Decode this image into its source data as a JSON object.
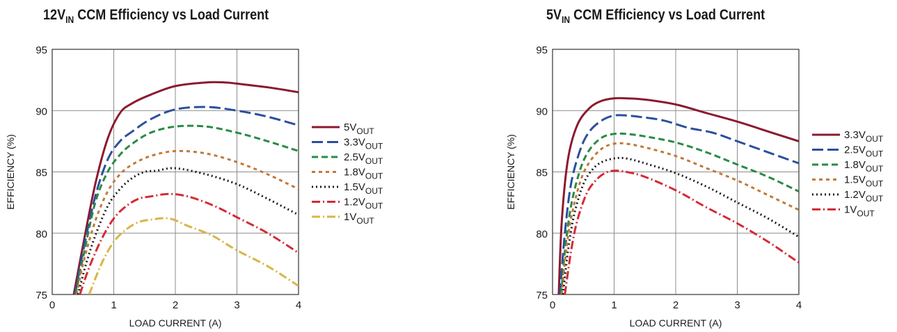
{
  "chart_data": [
    {
      "type": "line",
      "title": "12V",
      "title_sub": "IN",
      "title_rest": " CCM Efficiency vs Load Current",
      "xlabel": "LOAD CURRENT (A)",
      "ylabel": "EFFICIENCY (%)",
      "xlim": [
        0,
        4
      ],
      "ylim": [
        75,
        95
      ],
      "xticks": [
        "0",
        "1",
        "2",
        "3",
        "4"
      ],
      "yticks": [
        "75",
        "80",
        "85",
        "90",
        "95"
      ],
      "grid": true,
      "legend_position": "right",
      "series": [
        {
          "name": "5V",
          "name_sub": "OUT",
          "color": "#8b1a2e",
          "dash": "solid",
          "x": [
            0.35,
            0.5,
            0.7,
            0.9,
            1.1,
            1.3,
            1.6,
            2.0,
            2.5,
            2.8,
            3.0,
            3.5,
            4.0
          ],
          "y": [
            75,
            79,
            84,
            87.7,
            89.8,
            90.6,
            91.3,
            92.0,
            92.3,
            92.3,
            92.2,
            91.9,
            91.5
          ]
        },
        {
          "name": "3.3V",
          "name_sub": "OUT",
          "color": "#2c4f9e",
          "dash": "16,6",
          "x": [
            0.37,
            0.5,
            0.7,
            0.9,
            1.1,
            1.3,
            1.6,
            2.0,
            2.5,
            3.0,
            3.5,
            4.0
          ],
          "y": [
            75,
            78.5,
            83,
            86,
            87.5,
            88.3,
            89.3,
            90.1,
            90.3,
            90.0,
            89.5,
            88.8
          ]
        },
        {
          "name": "2.5V",
          "name_sub": "OUT",
          "color": "#2a8a45",
          "dash": "9,5",
          "x": [
            0.38,
            0.5,
            0.7,
            0.9,
            1.1,
            1.3,
            1.6,
            2.0,
            2.5,
            3.0,
            3.5,
            4.0
          ],
          "y": [
            75,
            78,
            82.5,
            85,
            86.4,
            87.3,
            88.2,
            88.7,
            88.7,
            88.2,
            87.5,
            86.7
          ]
        },
        {
          "name": "1.8V",
          "name_sub": "OUT",
          "color": "#c07a3a",
          "dash": "5,5",
          "x": [
            0.4,
            0.5,
            0.7,
            0.9,
            1.1,
            1.3,
            1.6,
            2.0,
            2.5,
            3.0,
            3.5,
            4.0
          ],
          "y": [
            75,
            77.5,
            81,
            83.4,
            84.8,
            85.6,
            86.3,
            86.7,
            86.5,
            85.8,
            84.8,
            83.6
          ]
        },
        {
          "name": "1.5V",
          "name_sub": "OUT",
          "color": "#1a1a1a",
          "dash": "2,4",
          "x": [
            0.42,
            0.55,
            0.7,
            0.9,
            1.1,
            1.3,
            1.5,
            1.7,
            2.0,
            2.5,
            3.0,
            3.5,
            4.0
          ],
          "y": [
            75,
            77.5,
            79.8,
            82.2,
            83.6,
            84.5,
            85.0,
            85.1,
            85.3,
            84.8,
            84.0,
            82.8,
            81.5
          ]
        },
        {
          "name": "1.2V",
          "name_sub": "OUT",
          "color": "#d42b35",
          "dash": "12,4,2,4",
          "x": [
            0.45,
            0.6,
            0.8,
            1.0,
            1.2,
            1.4,
            1.6,
            1.9,
            2.2,
            2.6,
            3.0,
            3.5,
            4.0
          ],
          "y": [
            75,
            77.2,
            79.5,
            81.2,
            82.2,
            82.8,
            83.0,
            83.2,
            83.0,
            82.3,
            81.3,
            80.0,
            78.4
          ]
        },
        {
          "name": "1V",
          "name_sub": "OUT",
          "color": "#d9b548",
          "dash": "12,4,2,4",
          "x": [
            0.6,
            0.8,
            1.0,
            1.2,
            1.4,
            1.6,
            1.9,
            2.2,
            2.6,
            3.0,
            3.5,
            4.0
          ],
          "y": [
            75,
            77.5,
            79.3,
            80.3,
            80.9,
            81.1,
            81.2,
            80.6,
            79.8,
            78.6,
            77.3,
            75.7
          ]
        }
      ]
    },
    {
      "type": "line",
      "title": "5V",
      "title_sub": "IN",
      "title_rest": " CCM Efficiency vs Load Current",
      "xlabel": "LOAD CURRENT (A)",
      "ylabel": "EFFICIENCY (%)",
      "xlim": [
        0,
        4
      ],
      "ylim": [
        75,
        95
      ],
      "xticks": [
        "0",
        "1",
        "2",
        "3",
        "4"
      ],
      "yticks": [
        "75",
        "80",
        "85",
        "90",
        "95"
      ],
      "grid": true,
      "legend_position": "right",
      "series": [
        {
          "name": "3.3V",
          "name_sub": "OUT",
          "color": "#8b1a2e",
          "dash": "solid",
          "x": [
            0.1,
            0.15,
            0.25,
            0.4,
            0.6,
            0.8,
            1.0,
            1.2,
            1.5,
            2.0,
            2.5,
            3.0,
            3.5,
            4.0
          ],
          "y": [
            75,
            81,
            86,
            88.8,
            90.2,
            90.8,
            91.0,
            91.0,
            90.9,
            90.5,
            89.8,
            89.1,
            88.3,
            87.5
          ]
        },
        {
          "name": "2.5V",
          "name_sub": "OUT",
          "color": "#2c4f9e",
          "dash": "16,6",
          "x": [
            0.12,
            0.2,
            0.3,
            0.45,
            0.6,
            0.8,
            1.0,
            1.2,
            1.4,
            1.8,
            2.2,
            2.6,
            3.0,
            3.5,
            4.0
          ],
          "y": [
            75,
            80,
            84,
            86.8,
            88.3,
            89.2,
            89.6,
            89.6,
            89.5,
            89.2,
            88.6,
            88.2,
            87.5,
            86.6,
            85.7
          ]
        },
        {
          "name": "1.8V",
          "name_sub": "OUT",
          "color": "#2a8a45",
          "dash": "9,5",
          "x": [
            0.14,
            0.2,
            0.3,
            0.45,
            0.6,
            0.8,
            1.0,
            1.2,
            1.5,
            2.0,
            2.5,
            3.0,
            3.5,
            4.0
          ],
          "y": [
            75,
            78.5,
            82.2,
            85.2,
            86.8,
            87.8,
            88.1,
            88.1,
            87.9,
            87.4,
            86.6,
            85.6,
            84.6,
            83.4
          ]
        },
        {
          "name": "1.5V",
          "name_sub": "OUT",
          "color": "#c07a3a",
          "dash": "5,5",
          "x": [
            0.15,
            0.22,
            0.3,
            0.45,
            0.6,
            0.8,
            1.0,
            1.2,
            1.5,
            2.0,
            2.5,
            3.0,
            3.5,
            4.0
          ],
          "y": [
            75,
            78.5,
            81.2,
            84.2,
            85.8,
            86.9,
            87.3,
            87.3,
            87.0,
            86.3,
            85.3,
            84.3,
            83.1,
            81.9
          ]
        },
        {
          "name": "1.2V",
          "name_sub": "OUT",
          "color": "#1a1a1a",
          "dash": "2,4",
          "x": [
            0.17,
            0.25,
            0.35,
            0.5,
            0.65,
            0.8,
            1.0,
            1.2,
            1.5,
            2.0,
            2.5,
            3.0,
            3.5,
            4.0
          ],
          "y": [
            75,
            78.5,
            81.5,
            84,
            85.2,
            85.8,
            86.1,
            86.1,
            85.7,
            84.9,
            83.8,
            82.5,
            81.2,
            79.7
          ]
        },
        {
          "name": "1V",
          "name_sub": "OUT",
          "color": "#d42b35",
          "dash": "12,4,2,4",
          "x": [
            0.2,
            0.3,
            0.4,
            0.55,
            0.7,
            0.85,
            1.0,
            1.2,
            1.5,
            2.0,
            2.5,
            3.0,
            3.5,
            4.0
          ],
          "y": [
            75,
            78.5,
            81,
            83.2,
            84.3,
            84.9,
            85.1,
            85.0,
            84.6,
            83.5,
            82.1,
            80.8,
            79.3,
            77.6
          ]
        }
      ]
    }
  ]
}
